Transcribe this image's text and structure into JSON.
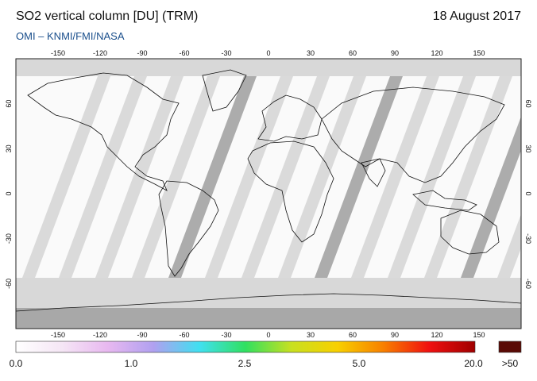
{
  "header": {
    "title": "SO2 vertical column [DU] (TRM)",
    "date": "18 August 2017",
    "credit": "OMI  –  KNMI/FMI/NASA"
  },
  "map": {
    "lon_ticks": [
      "-150",
      "-120",
      "-90",
      "-60",
      "-30",
      "0",
      "30",
      "60",
      "90",
      "120",
      "150"
    ],
    "lat_ticks": [
      "60",
      "30",
      "0",
      "-30",
      "-60"
    ],
    "colors": {
      "no_data_light": "#d8d8d8",
      "no_data_dark": "#a8a8a8",
      "antarctic": "#9a9a9a",
      "coast": "#111111"
    }
  },
  "colorbar": {
    "labels": [
      "0.0",
      "1.0",
      "2.5",
      "5.0",
      "20.0"
    ],
    "overflow_label": ">50",
    "overflow_color": "#5a0a05",
    "stops": [
      "#ffffff",
      "#f5e6f5",
      "#e8b8f0",
      "#b0a0f0",
      "#40e0f0",
      "#30e060",
      "#c8e020",
      "#f8d000",
      "#f88000",
      "#f01010",
      "#a00000"
    ]
  }
}
